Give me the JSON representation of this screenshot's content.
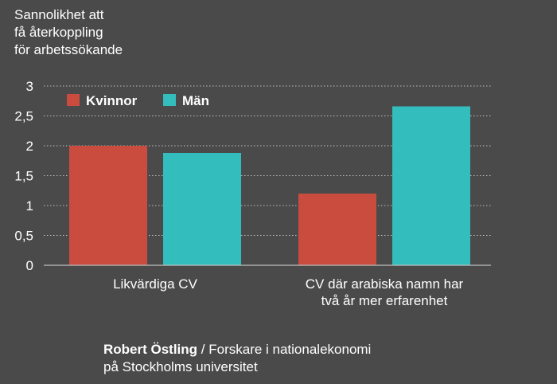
{
  "chart_data": {
    "type": "bar",
    "ylabel_lines": [
      "Sannolikhet att",
      "få återkoppling",
      "för arbetssökande"
    ],
    "categories": [
      [
        "Likvärdiga CV"
      ],
      [
        "CV där arabiska namn har",
        "två år mer erfarenhet"
      ]
    ],
    "series": [
      {
        "name": "Kvinnor",
        "color": "#c94c3f",
        "values": [
          2.0,
          1.2
        ]
      },
      {
        "name": "Män",
        "color": "#33bdbd",
        "values": [
          1.88,
          2.66
        ]
      }
    ],
    "ylim": [
      0,
      3
    ],
    "yticks": [
      "0",
      "0,5",
      "1",
      "1,5",
      "2",
      "2,5",
      "3"
    ],
    "grid": true,
    "legend_position": "top-left",
    "colors": {
      "background": "#4a4a4a",
      "grid": "#bfbfbf",
      "text": "#ffffff"
    }
  },
  "credit": {
    "name": "Robert Östling",
    "separator": " / ",
    "role": "Forskare i nationalekonomi",
    "line2": "på Stockholms universitet"
  }
}
